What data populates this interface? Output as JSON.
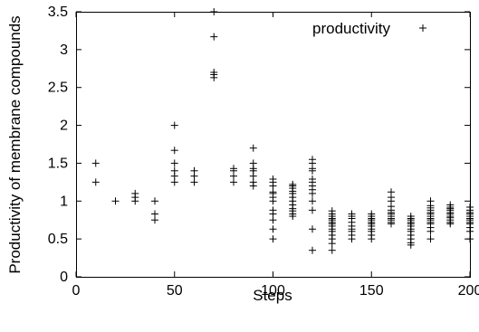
{
  "chart_data": {
    "type": "scatter",
    "xlabel": "Steps",
    "ylabel": "Productivity of membrane compounds",
    "xlim": [
      0,
      200
    ],
    "ylim": [
      0,
      3.5
    ],
    "x_ticks": [
      "0",
      "50",
      "100",
      "150",
      "200"
    ],
    "y_ticks": [
      "0",
      "0.5",
      "1",
      "1.5",
      "2",
      "2.5",
      "3",
      "3.5"
    ],
    "grid": false,
    "legend_position": "top-right",
    "marker": "plus",
    "series": [
      {
        "name": "productivity",
        "points": [
          [
            10,
            1.5
          ],
          [
            10,
            1.25
          ],
          [
            20,
            1.0
          ],
          [
            30,
            1.1
          ],
          [
            30,
            1.05
          ],
          [
            30,
            1.0
          ],
          [
            40,
            1.0
          ],
          [
            40,
            0.83
          ],
          [
            40,
            0.75
          ],
          [
            50,
            2.0
          ],
          [
            50,
            1.67
          ],
          [
            50,
            1.5
          ],
          [
            50,
            1.4
          ],
          [
            50,
            1.33
          ],
          [
            50,
            1.25
          ],
          [
            60,
            1.4
          ],
          [
            60,
            1.33
          ],
          [
            60,
            1.25
          ],
          [
            70,
            3.5
          ],
          [
            70,
            3.17
          ],
          [
            70,
            2.7
          ],
          [
            70,
            2.67
          ],
          [
            70,
            2.63
          ],
          [
            80,
            1.43
          ],
          [
            80,
            1.4
          ],
          [
            80,
            1.33
          ],
          [
            80,
            1.25
          ],
          [
            90,
            1.7
          ],
          [
            90,
            1.5
          ],
          [
            90,
            1.43
          ],
          [
            90,
            1.4
          ],
          [
            90,
            1.33
          ],
          [
            90,
            1.25
          ],
          [
            90,
            1.2
          ],
          [
            100,
            1.29
          ],
          [
            100,
            1.25
          ],
          [
            100,
            1.2
          ],
          [
            100,
            1.12
          ],
          [
            100,
            1.1
          ],
          [
            100,
            1.05
          ],
          [
            100,
            1.0
          ],
          [
            100,
            0.88
          ],
          [
            100,
            0.83
          ],
          [
            100,
            0.75
          ],
          [
            100,
            0.63
          ],
          [
            100,
            0.5
          ],
          [
            110,
            1.22
          ],
          [
            110,
            1.2
          ],
          [
            110,
            1.17
          ],
          [
            110,
            1.13
          ],
          [
            110,
            1.1
          ],
          [
            110,
            1.05
          ],
          [
            110,
            1.0
          ],
          [
            110,
            0.95
          ],
          [
            110,
            0.9
          ],
          [
            110,
            0.87
          ],
          [
            110,
            0.83
          ],
          [
            110,
            0.8
          ],
          [
            120,
            1.55
          ],
          [
            120,
            1.5
          ],
          [
            120,
            1.43
          ],
          [
            120,
            1.4
          ],
          [
            120,
            1.29
          ],
          [
            120,
            1.25
          ],
          [
            120,
            1.2
          ],
          [
            120,
            1.15
          ],
          [
            120,
            1.1
          ],
          [
            120,
            1.0
          ],
          [
            120,
            0.88
          ],
          [
            120,
            0.63
          ],
          [
            120,
            0.35
          ],
          [
            130,
            0.87
          ],
          [
            130,
            0.83
          ],
          [
            130,
            0.8
          ],
          [
            130,
            0.77
          ],
          [
            130,
            0.75
          ],
          [
            130,
            0.72
          ],
          [
            130,
            0.7
          ],
          [
            130,
            0.67
          ],
          [
            130,
            0.63
          ],
          [
            130,
            0.6
          ],
          [
            130,
            0.55
          ],
          [
            130,
            0.5
          ],
          [
            130,
            0.44
          ],
          [
            130,
            0.35
          ],
          [
            140,
            0.83
          ],
          [
            140,
            0.8
          ],
          [
            140,
            0.77
          ],
          [
            140,
            0.72
          ],
          [
            140,
            0.67
          ],
          [
            140,
            0.63
          ],
          [
            140,
            0.6
          ],
          [
            140,
            0.55
          ],
          [
            140,
            0.5
          ],
          [
            150,
            0.83
          ],
          [
            150,
            0.8
          ],
          [
            150,
            0.77
          ],
          [
            150,
            0.75
          ],
          [
            150,
            0.72
          ],
          [
            150,
            0.7
          ],
          [
            150,
            0.67
          ],
          [
            150,
            0.63
          ],
          [
            150,
            0.6
          ],
          [
            150,
            0.55
          ],
          [
            150,
            0.5
          ],
          [
            160,
            1.12
          ],
          [
            160,
            1.05
          ],
          [
            160,
            1.0
          ],
          [
            160,
            0.93
          ],
          [
            160,
            0.88
          ],
          [
            160,
            0.85
          ],
          [
            160,
            0.83
          ],
          [
            160,
            0.8
          ],
          [
            160,
            0.77
          ],
          [
            160,
            0.75
          ],
          [
            160,
            0.72
          ],
          [
            160,
            0.7
          ],
          [
            170,
            0.8
          ],
          [
            170,
            0.77
          ],
          [
            170,
            0.75
          ],
          [
            170,
            0.72
          ],
          [
            170,
            0.7
          ],
          [
            170,
            0.67
          ],
          [
            170,
            0.63
          ],
          [
            170,
            0.6
          ],
          [
            170,
            0.55
          ],
          [
            170,
            0.5
          ],
          [
            170,
            0.45
          ],
          [
            170,
            0.42
          ],
          [
            180,
            1.0
          ],
          [
            180,
            0.94
          ],
          [
            180,
            0.91
          ],
          [
            180,
            0.88
          ],
          [
            180,
            0.85
          ],
          [
            180,
            0.83
          ],
          [
            180,
            0.8
          ],
          [
            180,
            0.77
          ],
          [
            180,
            0.75
          ],
          [
            180,
            0.72
          ],
          [
            180,
            0.7
          ],
          [
            180,
            0.65
          ],
          [
            180,
            0.6
          ],
          [
            180,
            0.5
          ],
          [
            190,
            0.95
          ],
          [
            190,
            0.92
          ],
          [
            190,
            0.9
          ],
          [
            190,
            0.88
          ],
          [
            190,
            0.85
          ],
          [
            190,
            0.83
          ],
          [
            190,
            0.8
          ],
          [
            190,
            0.78
          ],
          [
            190,
            0.75
          ],
          [
            190,
            0.72
          ],
          [
            190,
            0.7
          ],
          [
            200,
            0.92
          ],
          [
            200,
            0.88
          ],
          [
            200,
            0.85
          ],
          [
            200,
            0.83
          ],
          [
            200,
            0.8
          ],
          [
            200,
            0.77
          ],
          [
            200,
            0.75
          ],
          [
            200,
            0.72
          ],
          [
            200,
            0.7
          ],
          [
            200,
            0.65
          ],
          [
            200,
            0.6
          ],
          [
            200,
            0.5
          ]
        ]
      }
    ]
  }
}
